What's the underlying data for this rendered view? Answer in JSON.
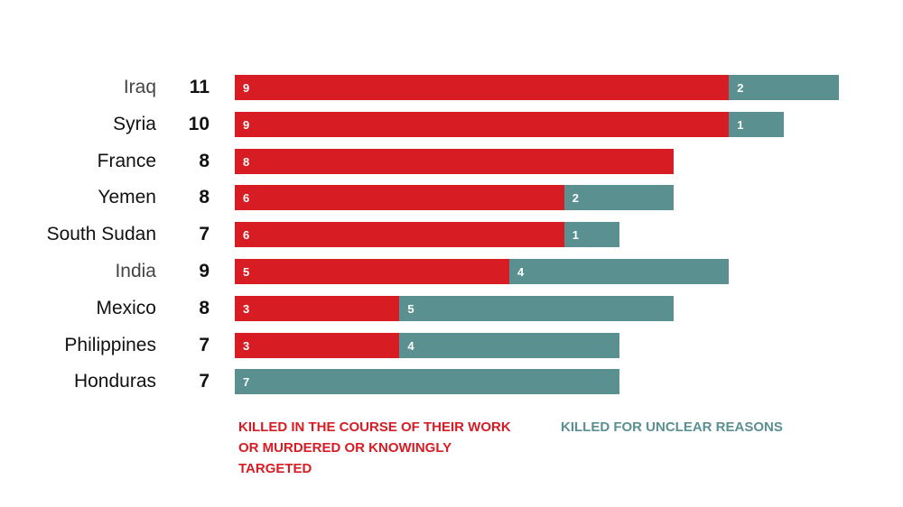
{
  "chart_data": {
    "type": "bar",
    "orientation": "horizontal",
    "stacked": true,
    "categories": [
      "Iraq",
      "Syria",
      "France",
      "Yemen",
      "South Sudan",
      "India",
      "Mexico",
      "Philippines",
      "Honduras"
    ],
    "totals": [
      11,
      10,
      8,
      8,
      7,
      9,
      8,
      7,
      7
    ],
    "series": [
      {
        "name": "KILLED IN THE COURSE OF THEIR WORK OR MURDERED OR KNOWINGLY TARGETED",
        "color": "#d71c23",
        "values": [
          9,
          9,
          8,
          6,
          6,
          5,
          3,
          3,
          0
        ]
      },
      {
        "name": "KILLED FOR UNCLEAR REASONS",
        "color": "#5b9090",
        "values": [
          2,
          1,
          0,
          2,
          1,
          4,
          5,
          4,
          7
        ]
      }
    ],
    "xlim": [
      0,
      11
    ],
    "grid": false,
    "legend": "bottom"
  }
}
